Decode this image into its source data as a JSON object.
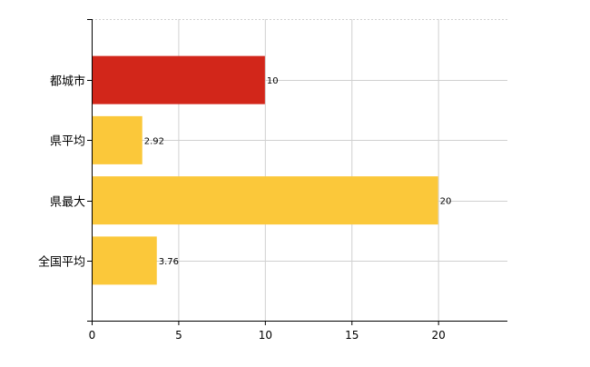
{
  "chart_data": {
    "type": "bar",
    "orientation": "horizontal",
    "categories": [
      "都城市",
      "県平均",
      "県最大",
      "全国平均"
    ],
    "values": [
      10,
      2.92,
      20,
      3.76
    ],
    "data_labels": [
      "10",
      "2.92",
      "20",
      "3.76"
    ],
    "bar_colors": [
      "#d2261a",
      "#fbc83a",
      "#fbc83a",
      "#fbc83a"
    ],
    "xlim": [
      0,
      24
    ],
    "xticks": [
      0,
      5,
      10,
      15,
      20
    ],
    "xtick_labels": [
      "0",
      "5",
      "10",
      "15",
      "20"
    ],
    "grid": true,
    "grid_color": "#d0d0d0",
    "title": "",
    "xlabel": "",
    "ylabel": ""
  }
}
